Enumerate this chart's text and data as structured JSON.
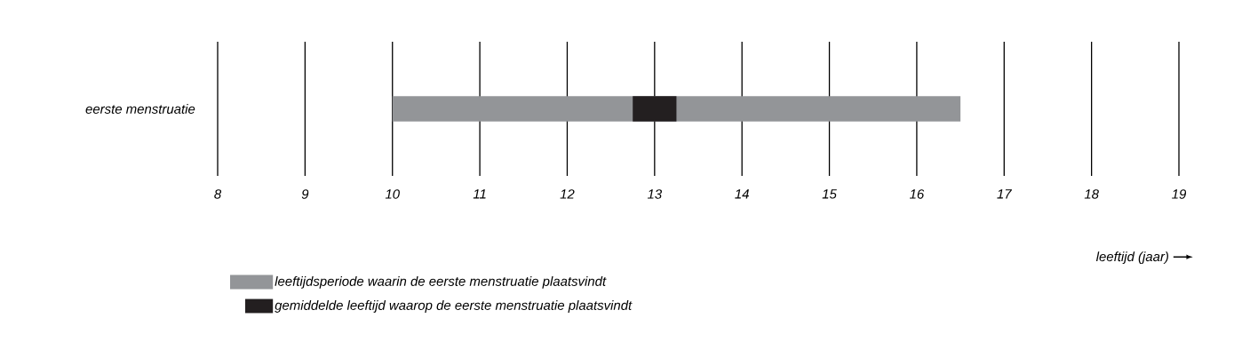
{
  "chart_data": {
    "type": "bar",
    "orientation": "horizontal",
    "categories": [
      "eerste menstruatie"
    ],
    "series": [
      {
        "name": "leeftijdsperiode waarin de eerste menstruatie plaatsvindt",
        "color": "#939598",
        "values": [
          6.5
        ],
        "base": [
          10
        ]
      },
      {
        "name": "gemiddelde leeftijd waarop de eerste menstruatie plaatsvindt",
        "color": "#231f20",
        "values": [
          0.5
        ],
        "base": [
          12.75
        ]
      }
    ],
    "xlim": [
      8,
      19
    ],
    "xticks": [
      8,
      9,
      10,
      11,
      12,
      13,
      14,
      15,
      16,
      17,
      18,
      19
    ],
    "xlabel": "leeftijd (jaar)",
    "grid": "x",
    "legend": "bottom"
  }
}
